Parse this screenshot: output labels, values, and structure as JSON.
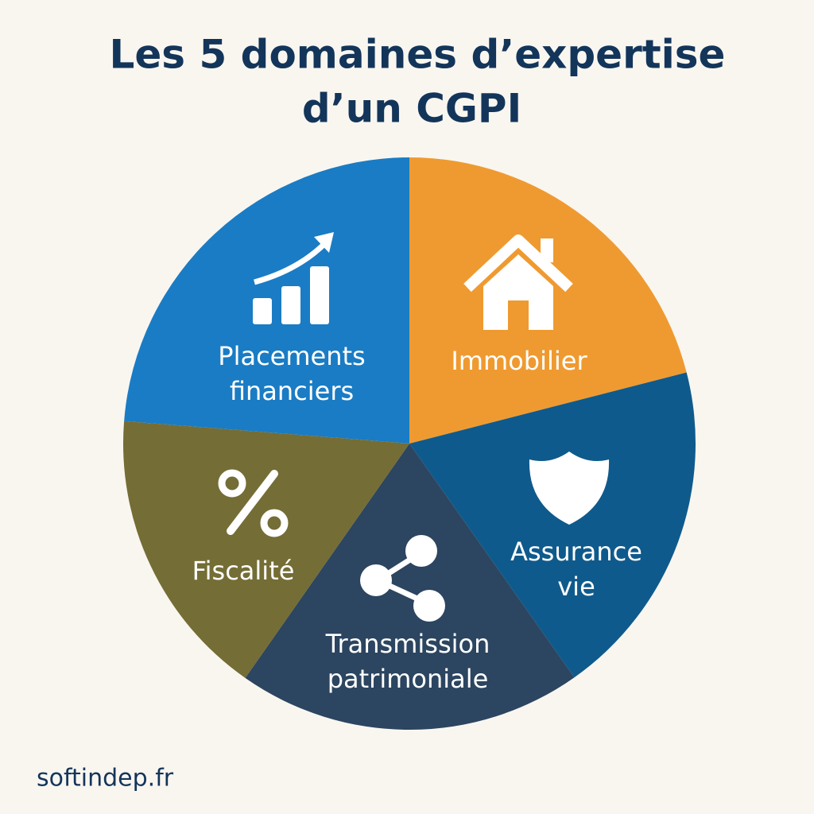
{
  "header": {
    "title": [
      "Les 5 domaines d’expertise",
      "d’un CGPI"
    ]
  },
  "segments": [
    {
      "label": [
        "Placements",
        "financiers"
      ]
    },
    {
      "label": [
        "Immobilier"
      ]
    },
    {
      "label": [
        "Assurance",
        "vie"
      ]
    },
    {
      "label": [
        "Transmission",
        "patrimoniale"
      ]
    },
    {
      "label": [
        "Fiscalité"
      ]
    }
  ],
  "footer": {
    "site": "softindep.fr"
  }
}
